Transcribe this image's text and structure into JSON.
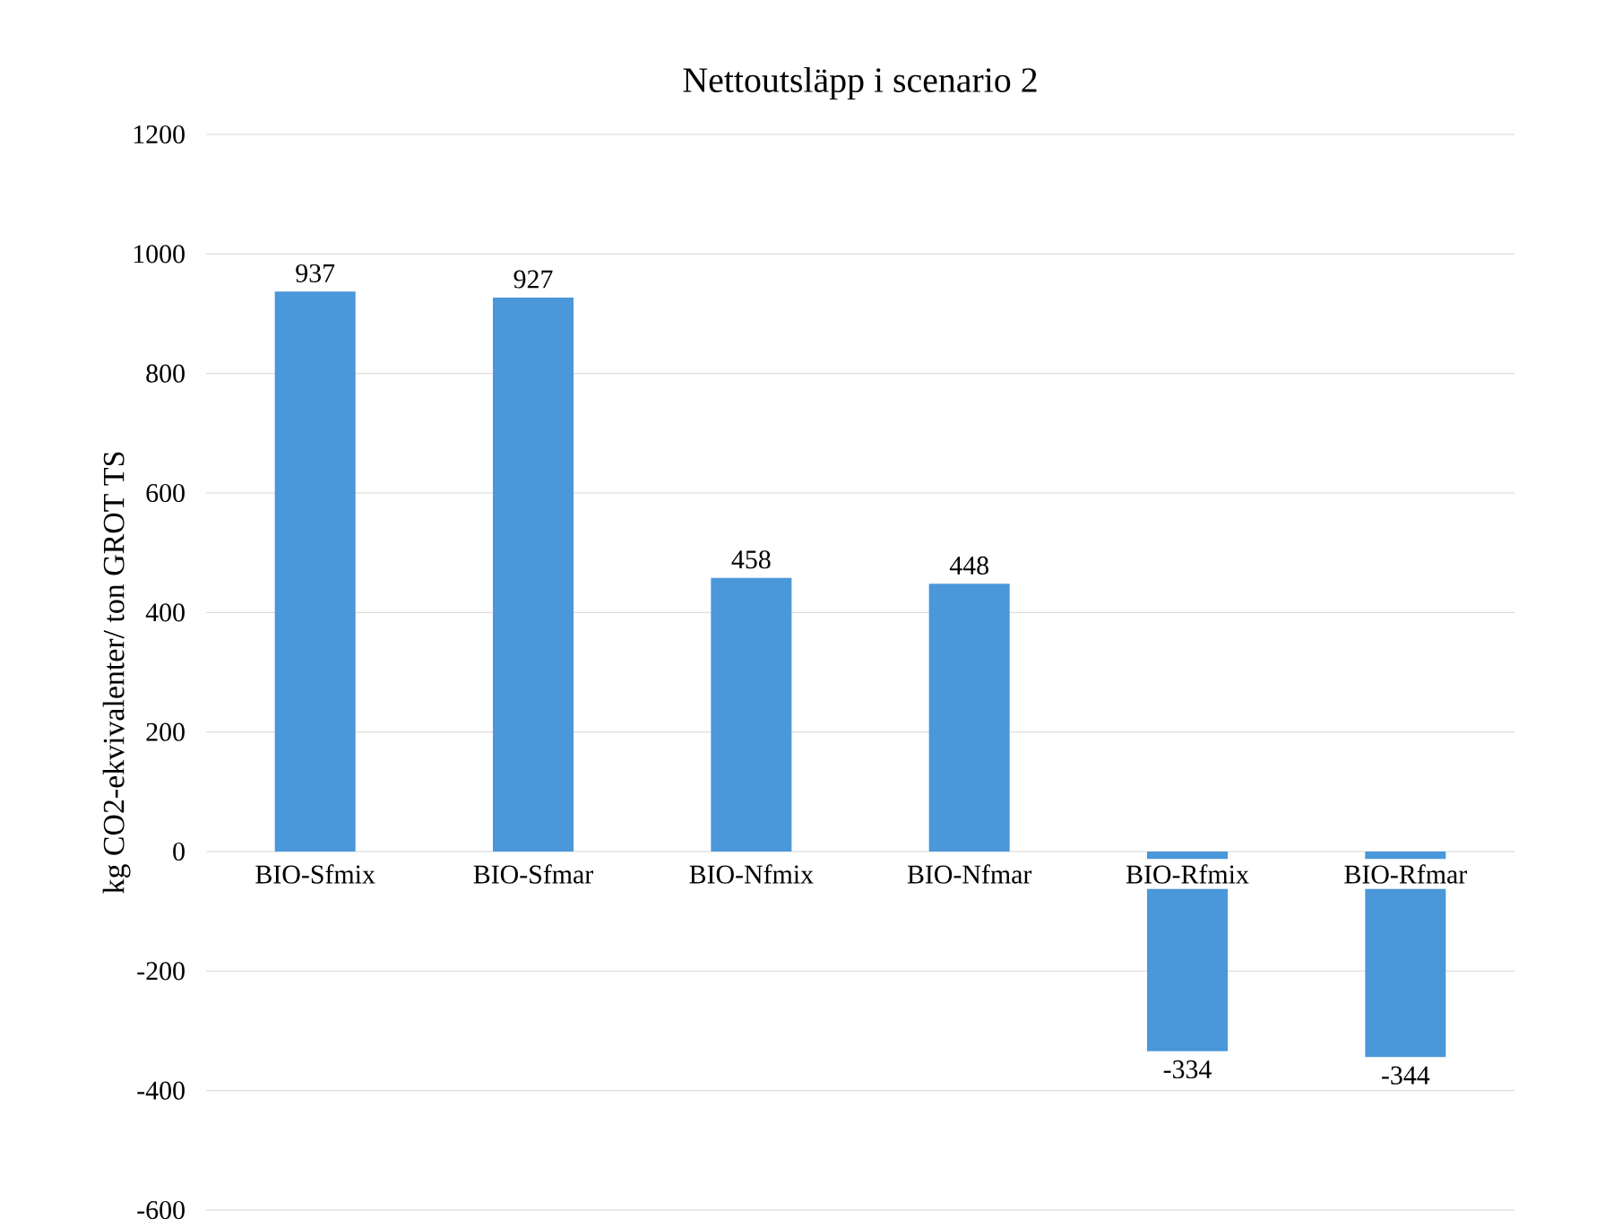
{
  "chart_data": {
    "type": "bar",
    "title": "Nettoutsläpp i scenario 2",
    "ylabel": "kg CO2-ekvivalenter/ ton GROT TS",
    "categories": [
      "BIO-Sfmix",
      "BIO-Sfmar",
      "BIO-Nfmix",
      "BIO-Nfmar",
      "BIO-Rfmix",
      "BIO-Rfmar"
    ],
    "values": [
      937,
      927,
      458,
      448,
      -334,
      -344
    ],
    "color": "#4a97d9",
    "ylim": [
      -600,
      1200
    ],
    "yticks": [
      -600,
      -400,
      -200,
      0,
      200,
      400,
      600,
      800,
      1000,
      1200
    ],
    "grid": "y",
    "data_labels": true
  }
}
